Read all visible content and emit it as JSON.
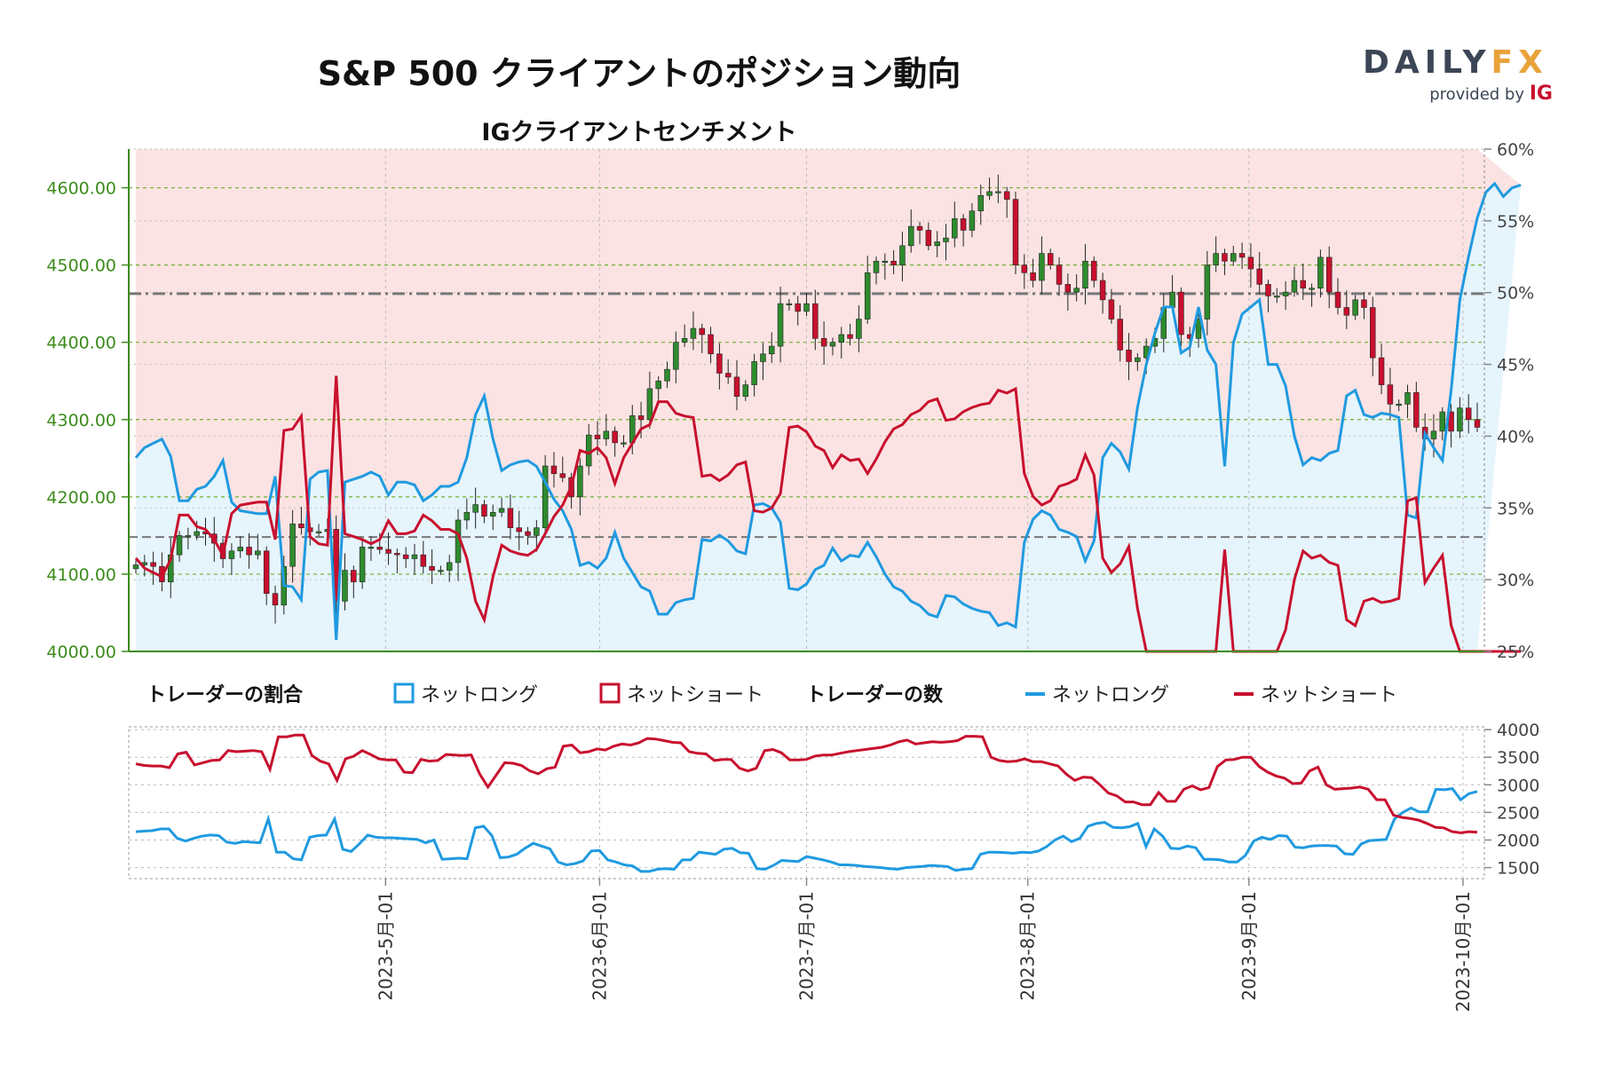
{
  "header": {
    "title": "S&P 500 クライアントのポジション動向",
    "subtitle": "IGクライアントセンチメント"
  },
  "logo": {
    "main_left": "DAILY",
    "main_right": "FX",
    "provided_by": "provided by",
    "brand": "IG"
  },
  "legend": {
    "ratio_heading": "トレーダーの割合",
    "ratio_long": "ネットロング",
    "ratio_short": "ネットショート",
    "count_heading": "トレーダーの数",
    "count_long": "ネットロング",
    "count_short": "ネットショート"
  },
  "colors": {
    "long": "#1f9ae0",
    "short": "#c8102e",
    "long_fill": "#e6f4fc",
    "short_fill": "#fbe3e3",
    "bull_candle": "#2e8b2e",
    "bear_candle": "#c8102e",
    "price_axis": "#3c8c1c"
  },
  "chart_data": [
    {
      "type": "candlestick",
      "price_axis": {
        "ticks": [
          "4000.00",
          "4100.00",
          "4200.00",
          "4300.00",
          "4400.00",
          "4500.00",
          "4600.00"
        ],
        "ylim": [
          4000,
          4650
        ]
      },
      "sentiment_axis": {
        "ticks": [
          "25%",
          "30%",
          "35%",
          "40%",
          "45%",
          "50%",
          "55%",
          "60%"
        ],
        "ylim": [
          25,
          60
        ]
      },
      "x_ticks": [
        "2023-5月-01",
        "2023-6月-01",
        "2023-7月-01",
        "2023-8月-01",
        "2023-9月-01",
        "2023-10月-01"
      ],
      "reference_lines": [
        {
          "axis": "price",
          "value": 4463,
          "style": "dash-dot"
        },
        {
          "axis": "price",
          "value": 4148,
          "style": "dash"
        }
      ],
      "close": [
        4112,
        4115,
        4110,
        4090,
        4125,
        4150,
        4150,
        4155,
        4152,
        4140,
        4120,
        4130,
        4135,
        4125,
        4130,
        4075,
        4060,
        4110,
        4165,
        4160,
        4155,
        4155,
        4158,
        4065,
        4105,
        4090,
        4135,
        4135,
        4132,
        4127,
        4125,
        4120,
        4125,
        4110,
        4105,
        4105,
        4115,
        4170,
        4180,
        4190,
        4175,
        4180,
        4185,
        4160,
        4155,
        4150,
        4160,
        4240,
        4230,
        4225,
        4200,
        4240,
        4280,
        4275,
        4285,
        4270,
        4270,
        4305,
        4300,
        4340,
        4350,
        4365,
        4400,
        4405,
        4418,
        4410,
        4385,
        4360,
        4355,
        4330,
        4345,
        4375,
        4385,
        4395,
        4450,
        4450,
        4440,
        4450,
        4405,
        4395,
        4400,
        4410,
        4405,
        4430,
        4490,
        4505,
        4505,
        4500,
        4525,
        4550,
        4545,
        4525,
        4530,
        4535,
        4560,
        4545,
        4570,
        4590,
        4595,
        4595,
        4585,
        4500,
        4490,
        4480,
        4515,
        4500,
        4475,
        4465,
        4470,
        4505,
        4480,
        4455,
        4430,
        4390,
        4375,
        4380,
        4395,
        4405,
        4445,
        4465,
        4410,
        4405,
        4430,
        4500,
        4515,
        4505,
        4515,
        4510,
        4495,
        4475,
        4460,
        4460,
        4465,
        4480,
        4470,
        4470,
        4510,
        4465,
        4445,
        4435,
        4455,
        4445,
        4380,
        4345,
        4320,
        4320,
        4335,
        4290,
        4275,
        4285,
        4310,
        4285,
        4315,
        4300,
        4290
      ],
      "sentiment_long_pct": [
        38.5,
        39.2,
        39.5,
        39.8,
        38.6,
        35.5,
        35.5,
        36.3,
        36.5,
        37.2,
        38.3,
        35.4,
        34.8,
        34.7,
        34.6,
        34.6,
        37.2,
        29.6,
        29.5,
        28.6,
        37.0,
        37.5,
        37.6,
        25.8,
        36.8,
        37.0,
        37.2,
        37.5,
        37.2,
        35.9,
        36.8,
        36.8,
        36.6,
        35.5,
        35.9,
        36.5,
        36.5,
        36.8,
        38.5,
        41.5,
        42.8,
        39.8,
        37.6,
        38.0,
        38.2,
        38.3,
        37.9,
        36.8,
        35.6,
        34.8,
        33.5,
        31.0,
        31.2,
        30.8,
        31.5,
        33.3,
        31.5,
        30.5,
        29.5,
        29.2,
        27.6,
        27.6,
        28.4,
        28.6,
        28.7,
        32.8,
        32.7,
        33.1,
        32.7,
        32.0,
        31.8,
        35.2,
        35.3,
        35.0,
        34.0,
        29.4,
        29.3,
        29.7,
        30.7,
        31.0,
        32.2,
        31.3,
        31.7,
        31.6,
        32.6,
        31.6,
        30.4,
        29.5,
        29.2,
        28.5,
        28.2,
        27.6,
        27.4,
        28.9,
        28.8,
        28.3,
        28.0,
        27.8,
        27.7,
        26.8,
        27.0,
        26.7,
        32.6,
        34.2,
        34.8,
        34.5,
        33.5,
        33.3,
        33.0,
        31.3,
        32.7,
        38.5,
        39.5,
        38.9,
        37.7,
        42.0,
        45.0,
        47.2,
        49.0,
        49.0,
        45.8,
        46.2,
        49.0,
        46.0,
        45.0,
        37.9,
        46.5,
        48.5,
        49.0,
        49.5,
        45.0,
        45.0,
        43.5,
        40.0,
        38.0,
        38.5,
        38.3,
        38.8,
        39.0,
        42.8,
        43.2,
        41.5,
        41.3,
        41.6,
        41.5,
        41.3,
        34.5,
        34.3,
        40.2,
        39.2,
        38.3,
        43.2,
        49.5,
        52.5,
        55.2,
        57.0,
        57.6,
        56.7,
        57.3,
        57.5
      ],
      "series": [
        {
          "name": "ネットロング",
          "role": "long-share (fill below line)"
        },
        {
          "name": "ネットショート",
          "role": "short-share (line = 100 − long)"
        }
      ]
    },
    {
      "type": "line",
      "y_axis": {
        "ticks": [
          "1500",
          "2000",
          "2500",
          "3000",
          "3500",
          "4000"
        ],
        "ylim": [
          1300,
          4050
        ]
      },
      "series": [
        {
          "name": "ネットロング",
          "values": [
            2150,
            2160,
            2170,
            2200,
            2200,
            2030,
            1980,
            2030,
            2070,
            2090,
            2080,
            1960,
            1940,
            1970,
            1960,
            1950,
            2380,
            1780,
            1780,
            1660,
            1640,
            2050,
            2080,
            2090,
            2380,
            1830,
            1790,
            1930,
            2090,
            2050,
            2040,
            2040,
            2030,
            2020,
            2010,
            1950,
            2000,
            1650,
            1660,
            1670,
            1660,
            2220,
            2250,
            2080,
            1680,
            1690,
            1740,
            1850,
            1940,
            1890,
            1840,
            1600,
            1550,
            1570,
            1620,
            1800,
            1810,
            1640,
            1600,
            1550,
            1530,
            1430,
            1430,
            1470,
            1480,
            1470,
            1640,
            1640,
            1780,
            1760,
            1740,
            1830,
            1850,
            1770,
            1760,
            1480,
            1470,
            1540,
            1630,
            1620,
            1610,
            1700,
            1670,
            1640,
            1600,
            1550,
            1550,
            1540,
            1520,
            1510,
            1500,
            1480,
            1470,
            1500,
            1510,
            1520,
            1540,
            1530,
            1520,
            1450,
            1470,
            1480,
            1740,
            1780,
            1780,
            1770,
            1760,
            1780,
            1770,
            1800,
            1880,
            2000,
            2070,
            1970,
            2030,
            2250,
            2300,
            2320,
            2230,
            2220,
            2240,
            2300,
            1880,
            2200,
            2070,
            1850,
            1840,
            1890,
            1860,
            1650,
            1650,
            1640,
            1600,
            1600,
            1720,
            1980,
            2050,
            2010,
            2080,
            2070,
            1870,
            1860,
            1890,
            1900,
            1900,
            1890,
            1750,
            1740,
            1930,
            1990,
            2000,
            2010,
            2380,
            2500,
            2580,
            2510,
            2510,
            2920,
            2910,
            2930,
            2730,
            2840,
            2880
          ]
        },
        {
          "name": "ネットショート",
          "values": [
            3380,
            3350,
            3340,
            3340,
            3310,
            3560,
            3590,
            3360,
            3400,
            3440,
            3450,
            3620,
            3600,
            3610,
            3620,
            3600,
            3280,
            3870,
            3870,
            3900,
            3900,
            3530,
            3430,
            3380,
            3080,
            3470,
            3520,
            3620,
            3550,
            3470,
            3450,
            3450,
            3230,
            3220,
            3460,
            3430,
            3440,
            3550,
            3540,
            3530,
            3540,
            3200,
            2960,
            3180,
            3400,
            3390,
            3350,
            3250,
            3200,
            3290,
            3320,
            3700,
            3720,
            3580,
            3600,
            3650,
            3630,
            3700,
            3740,
            3720,
            3760,
            3840,
            3830,
            3800,
            3770,
            3760,
            3600,
            3570,
            3560,
            3440,
            3460,
            3460,
            3300,
            3250,
            3300,
            3620,
            3640,
            3580,
            3450,
            3450,
            3460,
            3520,
            3540,
            3540,
            3570,
            3600,
            3620,
            3640,
            3660,
            3680,
            3720,
            3780,
            3810,
            3740,
            3760,
            3780,
            3770,
            3780,
            3800,
            3880,
            3880,
            3870,
            3500,
            3440,
            3420,
            3430,
            3470,
            3420,
            3420,
            3380,
            3340,
            3190,
            3080,
            3140,
            3130,
            3000,
            2850,
            2800,
            2690,
            2690,
            2640,
            2640,
            2860,
            2700,
            2700,
            2920,
            2980,
            2910,
            2950,
            3330,
            3450,
            3460,
            3500,
            3500,
            3330,
            3230,
            3160,
            3120,
            3020,
            3030,
            3250,
            3320,
            3000,
            2920,
            2930,
            2940,
            2960,
            2920,
            2730,
            2730,
            2450,
            2410,
            2390,
            2360,
            2300,
            2230,
            2220,
            2150,
            2130,
            2150,
            2140
          ]
        }
      ]
    }
  ]
}
